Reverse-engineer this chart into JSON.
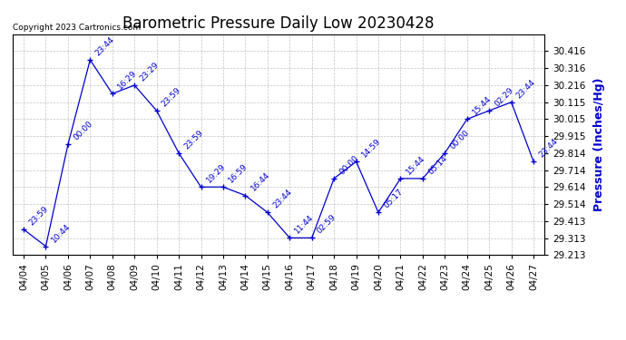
{
  "title": "Barometric Pressure Daily Low 20230428",
  "ylabel": "Pressure (Inches/Hg)",
  "copyright": "Copyright 2023 Cartronics.com",
  "dates": [
    "04/04",
    "04/05",
    "04/06",
    "04/07",
    "04/08",
    "04/09",
    "04/10",
    "04/11",
    "04/12",
    "04/13",
    "04/14",
    "04/15",
    "04/16",
    "04/17",
    "04/18",
    "04/19",
    "04/20",
    "04/21",
    "04/22",
    "04/23",
    "04/24",
    "04/25",
    "04/26",
    "04/27"
  ],
  "values": [
    29.364,
    29.264,
    29.864,
    30.364,
    30.164,
    30.214,
    30.064,
    29.814,
    29.614,
    29.614,
    29.564,
    29.464,
    29.314,
    29.314,
    29.664,
    29.764,
    29.464,
    29.664,
    29.664,
    29.814,
    30.014,
    30.064,
    30.114,
    29.764
  ],
  "times": [
    "23:59",
    "10:44",
    "00:00",
    "23:44",
    "16:29",
    "23:29",
    "23:59",
    "23:59",
    "19:29",
    "16:59",
    "16:44",
    "23:44",
    "11:44",
    "02:59",
    "00:00",
    "14:59",
    "05:17",
    "15:44",
    "05:14",
    "00:00",
    "15:44",
    "02:29",
    "23:44",
    "23:44"
  ],
  "line_color": "#0000cc",
  "marker_color": "#0000cc",
  "title_color": "#000000",
  "ylabel_color": "#0000cc",
  "copyright_color": "#000000",
  "background_color": "#ffffff",
  "grid_color": "#aaaaaa",
  "ylim_min": 29.213,
  "ylim_max": 30.516,
  "yticks": [
    29.213,
    29.313,
    29.413,
    29.514,
    29.614,
    29.714,
    29.814,
    29.915,
    30.015,
    30.115,
    30.216,
    30.316,
    30.416
  ],
  "title_fontsize": 12,
  "tick_fontsize": 7.5,
  "annotation_fontsize": 6.5,
  "ylabel_fontsize": 9
}
